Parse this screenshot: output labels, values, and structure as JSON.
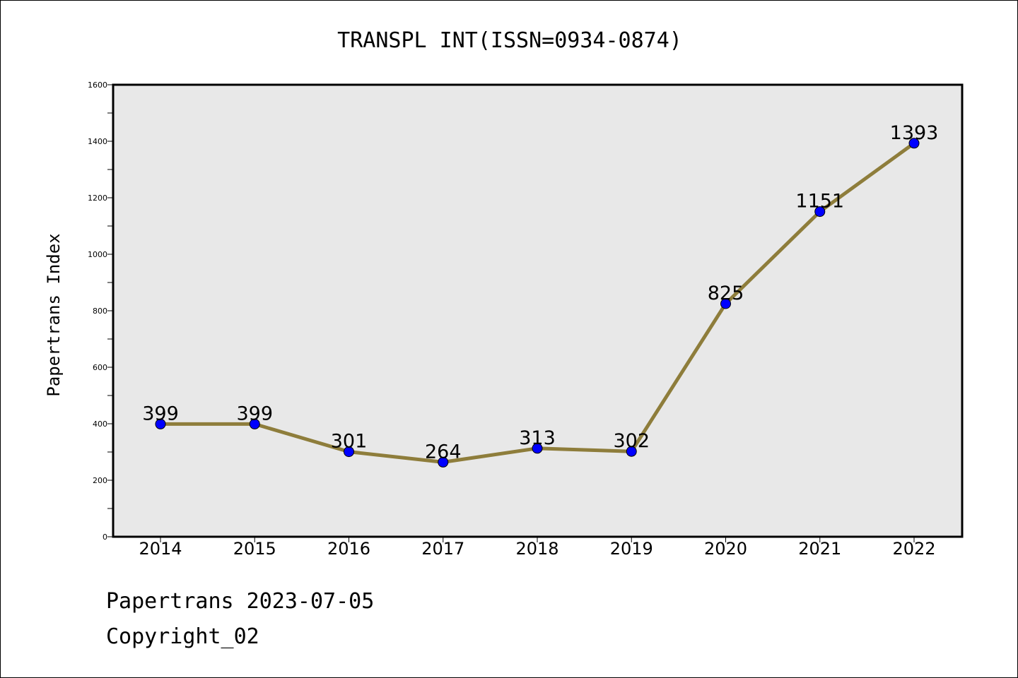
{
  "chart_data": {
    "type": "line",
    "title": "TRANSPL INT(ISSN=0934-0874)",
    "ylabel": "Papertrans Index",
    "xlabel": "",
    "categories": [
      "2014",
      "2015",
      "2016",
      "2017",
      "2018",
      "2019",
      "2020",
      "2021",
      "2022"
    ],
    "values": [
      399,
      399,
      301,
      264,
      313,
      302,
      825,
      1151,
      1393
    ],
    "ylim": [
      0,
      1600
    ],
    "yticks": [
      "0",
      "200",
      "400",
      "600",
      "800",
      "1000",
      "1200",
      "1400",
      "1600"
    ],
    "grid": false,
    "legend": "none",
    "line_color": "#8e7d3b",
    "marker_color": "#0000ff",
    "plot_background": "#e8e8e8"
  },
  "footer": {
    "date_text": "Papertrans 2023-07-05",
    "copyright_text": "Copyright_02"
  }
}
